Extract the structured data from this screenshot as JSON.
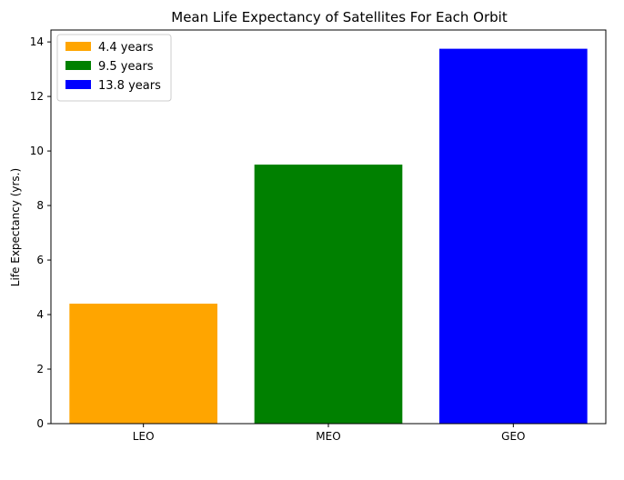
{
  "chart_data": {
    "type": "bar",
    "title": "Mean Life Expectancy of Satellites For Each Orbit",
    "xlabel": "",
    "ylabel": "Life Expectancy (yrs.)",
    "categories": [
      "LEO",
      "MEO",
      "GEO"
    ],
    "values": [
      4.4,
      9.5,
      13.75
    ],
    "colors": [
      "#ffa500",
      "#008000",
      "#0000ff"
    ],
    "ylim": [
      0,
      14.4375
    ],
    "yticks": [
      0,
      2,
      4,
      6,
      8,
      10,
      12,
      14
    ],
    "grid": false,
    "legend": {
      "position": "top-left",
      "entries": [
        {
          "label": "4.4 years",
          "color": "#ffa500"
        },
        {
          "label": "9.5 years",
          "color": "#008000"
        },
        {
          "label": "13.8 years",
          "color": "#0000ff"
        }
      ]
    }
  }
}
